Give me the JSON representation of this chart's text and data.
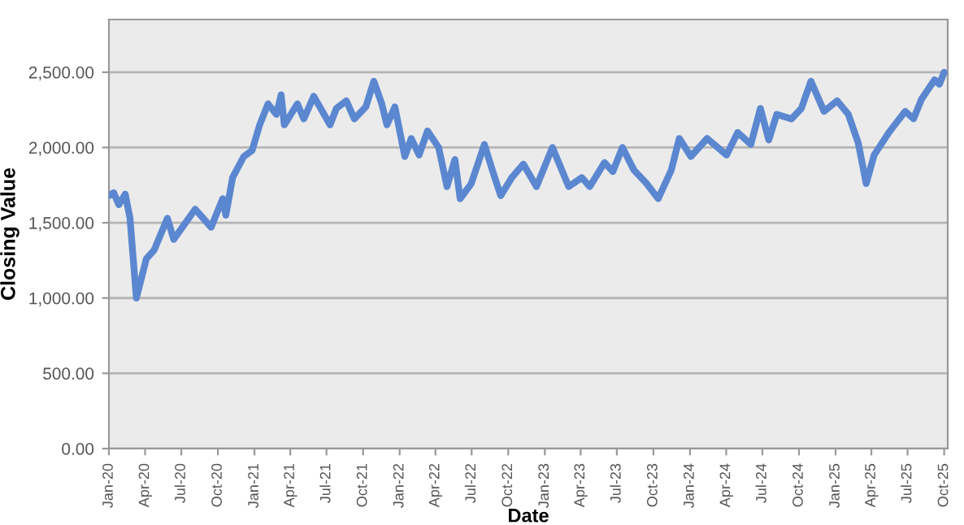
{
  "chart_data": {
    "type": "line",
    "xlabel": "Date",
    "ylabel": "Closing Value",
    "x": [
      "2020-01-01",
      "2020-01-13",
      "2020-01-26",
      "2020-02-11",
      "2020-02-23",
      "2020-03-10",
      "2020-04-04",
      "2020-04-24",
      "2020-05-27",
      "2020-06-12",
      "2020-08-05",
      "2020-09-14",
      "2020-10-13",
      "2020-10-21",
      "2020-11-07",
      "2020-12-05",
      "2020-12-26",
      "2021-01-14",
      "2021-02-04",
      "2021-02-25",
      "2021-03-09",
      "2021-03-17",
      "2021-04-19",
      "2021-05-05",
      "2021-05-30",
      "2021-07-10",
      "2021-07-26",
      "2021-08-20",
      "2021-09-09",
      "2021-10-08",
      "2021-10-28",
      "2021-11-17",
      "2021-11-30",
      "2021-12-20",
      "2022-01-14",
      "2022-01-30",
      "2022-02-19",
      "2022-03-12",
      "2022-04-09",
      "2022-04-30",
      "2022-05-20",
      "2022-06-02",
      "2022-06-30",
      "2022-08-02",
      "2022-08-22",
      "2022-09-12",
      "2022-10-10",
      "2022-11-08",
      "2022-12-11",
      "2023-01-20",
      "2023-03-02",
      "2023-04-04",
      "2023-04-24",
      "2023-05-31",
      "2023-06-21",
      "2023-07-15",
      "2023-08-13",
      "2023-09-14",
      "2023-10-13",
      "2023-11-15",
      "2023-12-05",
      "2024-01-03",
      "2024-02-13",
      "2024-04-02",
      "2024-04-30",
      "2024-06-02",
      "2024-06-26",
      "2024-07-17",
      "2024-08-06",
      "2024-09-12",
      "2024-10-07",
      "2024-10-31",
      "2024-12-03",
      "2025-01-05",
      "2025-02-02",
      "2025-02-27",
      "2025-03-19",
      "2025-04-08",
      "2025-05-15",
      "2025-06-25",
      "2025-07-16",
      "2025-08-05",
      "2025-09-07",
      "2025-09-19",
      "2025-10-01"
    ],
    "series": [
      {
        "color": "#5b87d0",
        "values": [
          1680,
          1700,
          1620,
          1690,
          1530,
          1000,
          1260,
          1320,
          1530,
          1390,
          1590,
          1470,
          1660,
          1550,
          1800,
          1940,
          1980,
          2150,
          2290,
          2220,
          2350,
          2150,
          2290,
          2190,
          2340,
          2150,
          2260,
          2310,
          2190,
          2270,
          2440,
          2290,
          2150,
          2270,
          1940,
          2060,
          1950,
          2110,
          2000,
          1740,
          1920,
          1660,
          1760,
          2020,
          1850,
          1680,
          1800,
          1890,
          1740,
          2000,
          1740,
          1800,
          1740,
          1900,
          1840,
          2000,
          1850,
          1760,
          1660,
          1850,
          2060,
          1940,
          2060,
          1950,
          2100,
          2020,
          2260,
          2050,
          2220,
          2190,
          2260,
          2440,
          2240,
          2310,
          2220,
          2030,
          1760,
          1950,
          2100,
          2240,
          2190,
          2320,
          2450,
          2420,
          2500
        ]
      }
    ],
    "xlim": [
      "2020-01-01",
      "2025-10-10"
    ],
    "xticks": [
      {
        "value": "2020-01-01",
        "label": "Jan-20"
      },
      {
        "value": "2020-04-01",
        "label": "Apr-20"
      },
      {
        "value": "2020-07-01",
        "label": "Jul-20"
      },
      {
        "value": "2020-10-01",
        "label": "Oct-20"
      },
      {
        "value": "2021-01-01",
        "label": "Jan-21"
      },
      {
        "value": "2021-04-01",
        "label": "Apr-21"
      },
      {
        "value": "2021-07-01",
        "label": "Jul-21"
      },
      {
        "value": "2021-10-01",
        "label": "Oct-21"
      },
      {
        "value": "2022-01-01",
        "label": "Jan-22"
      },
      {
        "value": "2022-04-01",
        "label": "Apr-22"
      },
      {
        "value": "2022-07-01",
        "label": "Jul-22"
      },
      {
        "value": "2022-10-01",
        "label": "Oct-22"
      },
      {
        "value": "2023-01-01",
        "label": "Jan-23"
      },
      {
        "value": "2023-04-01",
        "label": "Apr-23"
      },
      {
        "value": "2023-07-01",
        "label": "Jul-23"
      },
      {
        "value": "2023-10-01",
        "label": "Oct-23"
      },
      {
        "value": "2024-01-01",
        "label": "Jan-24"
      },
      {
        "value": "2024-04-01",
        "label": "Apr-24"
      },
      {
        "value": "2024-07-01",
        "label": "Jul-24"
      },
      {
        "value": "2024-10-01",
        "label": "Oct-24"
      },
      {
        "value": "2025-01-01",
        "label": "Jan-25"
      },
      {
        "value": "2025-04-01",
        "label": "Apr-25"
      },
      {
        "value": "2025-07-01",
        "label": "Jul-25"
      },
      {
        "value": "2025-10-01",
        "label": "Oct-25"
      }
    ],
    "ylim": [
      0,
      2850
    ],
    "yticks": [
      {
        "value": 0,
        "label": "0.00"
      },
      {
        "value": 500,
        "label": "500.00"
      },
      {
        "value": 1000,
        "label": "1,000.00"
      },
      {
        "value": 1500,
        "label": "1,500.00"
      },
      {
        "value": 2000,
        "label": "2,000.00"
      },
      {
        "value": 2500,
        "label": "2,500.00"
      }
    ],
    "grid": "y",
    "marker": "none",
    "line_style": "solid"
  }
}
